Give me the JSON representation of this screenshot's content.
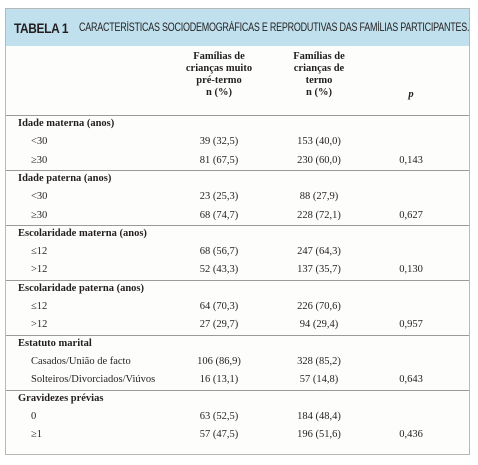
{
  "header": {
    "label": "TABELA 1",
    "title": "CARACTERÍSTICAS SOCIODEMOGRÁFICAS E REPRODUTIVAS DAS FAMÍLIAS PARTICIPANTES."
  },
  "table": {
    "columns": [
      {
        "lines": [
          "Famílias de",
          "crianças muito",
          "pré-termo",
          "n (%)"
        ]
      },
      {
        "lines": [
          "Famílias de",
          "crianças de",
          "termo",
          "n (%)"
        ]
      },
      {
        "lines": [
          "p"
        ]
      }
    ],
    "sections": [
      {
        "title": "Idade materna (anos)",
        "rows": [
          {
            "label": "<30",
            "a": "39 (32,5)",
            "b": "153 (40,0)"
          },
          {
            "label": "≥30",
            "a": "81 (67,5)",
            "b": "230 (60,0)",
            "p": "0,143"
          }
        ]
      },
      {
        "title": "Idade paterna (anos)",
        "rows": [
          {
            "label": "<30",
            "a": "23 (25,3)",
            "b": "88 (27,9)"
          },
          {
            "label": "≥30",
            "a": "68 (74,7)",
            "b": "228 (72,1)",
            "p": "0,627"
          }
        ]
      },
      {
        "title": "Escolaridade materna (anos)",
        "rows": [
          {
            "label": "≤12",
            "a": "68 (56,7)",
            "b": "247 (64,3)"
          },
          {
            "label": ">12",
            "a": "52 (43,3)",
            "b": "137 (35,7)",
            "p": "0,130"
          }
        ]
      },
      {
        "title": "Escolaridade paterna (anos)",
        "rows": [
          {
            "label": "≤12",
            "a": "64 (70,3)",
            "b": "226 (70,6)"
          },
          {
            "label": ">12",
            "a": "27 (29,7)",
            "b": "94 (29,4)",
            "p": "0,957"
          }
        ]
      },
      {
        "title": "Estatuto marital",
        "rows": [
          {
            "label": "Casados/União de facto",
            "a": "106 (86,9)",
            "b": "328 (85,2)"
          },
          {
            "label": "Solteiros/Divorciados/Viúvos",
            "a": "16 (13,1)",
            "b": "57 (14,8)",
            "p": "0,643"
          }
        ]
      },
      {
        "title": "Gravidezes prévias",
        "rows": [
          {
            "label": "0",
            "a": "63 (52,5)",
            "b": "184 (48,4)"
          },
          {
            "label": "≥1",
            "a": "57 (47,5)",
            "b": "196 (51,6)",
            "p": "0,436"
          }
        ]
      }
    ]
  }
}
